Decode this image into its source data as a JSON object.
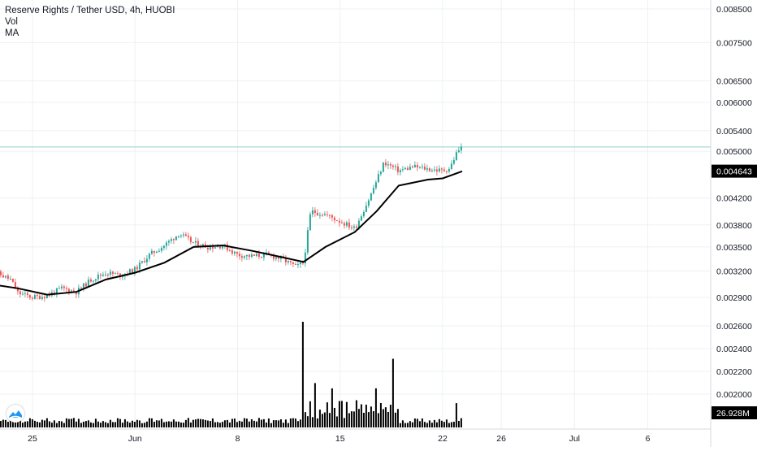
{
  "legend": {
    "title": "Reserve Rights / Tether USD, 4h, HUOBI",
    "vol": "Vol",
    "ma": "MA"
  },
  "price_axis": {
    "ticks": [
      "0.008500",
      "0.007500",
      "0.006500",
      "0.006000",
      "0.005400",
      "0.005000",
      "0.004200",
      "0.003800",
      "0.003500",
      "0.003200",
      "0.002900",
      "0.002600",
      "0.002400",
      "0.002200",
      "0.002000"
    ],
    "current_price_label": "0.004643",
    "last_price_line": "0.005080",
    "volume_label": "26.928M"
  },
  "time_axis": {
    "ticks": [
      "25",
      "Jun",
      "8",
      "15",
      "22",
      "26",
      "Jul",
      "6"
    ]
  },
  "colors": {
    "up": "#26a69a",
    "down": "#ef5350",
    "ma": "#000000",
    "volume": "#000000",
    "grid": "#eef0f3",
    "axis_text": "#131722",
    "price_line": "#8fd0c8",
    "logo": "#2196f3"
  },
  "chart_data": {
    "type": "candlestick",
    "title": "Reserve Rights / Tether USD, 4h, HUOBI",
    "interval": "4h",
    "exchange": "HUOBI",
    "price_axis_scale": "log",
    "visible_price_range": [
      0.0028,
      0.0088
    ],
    "x_range": [
      "2020-05-22",
      "2020-07-09"
    ],
    "price_points": [
      {
        "date": "2020-05-22",
        "price": 0.003
      },
      {
        "date": "2020-05-22T12:00",
        "price": 0.00318
      },
      {
        "date": "2020-05-23T12:00",
        "price": 0.0031
      },
      {
        "date": "2020-05-24",
        "price": 0.00295
      },
      {
        "date": "2020-05-25",
        "price": 0.0029
      },
      {
        "date": "2020-05-26",
        "price": 0.00292
      },
      {
        "date": "2020-05-27",
        "price": 0.003
      },
      {
        "date": "2020-05-28",
        "price": 0.00296
      },
      {
        "date": "2020-05-29",
        "price": 0.0031
      },
      {
        "date": "2020-05-30",
        "price": 0.00318
      },
      {
        "date": "2020-05-31",
        "price": 0.00315
      },
      {
        "date": "2020-06-01",
        "price": 0.00322
      },
      {
        "date": "2020-06-02",
        "price": 0.0034
      },
      {
        "date": "2020-06-03",
        "price": 0.00352
      },
      {
        "date": "2020-06-04",
        "price": 0.00368
      },
      {
        "date": "2020-06-05",
        "price": 0.00355
      },
      {
        "date": "2020-06-06",
        "price": 0.0035
      },
      {
        "date": "2020-06-07",
        "price": 0.00352
      },
      {
        "date": "2020-06-08",
        "price": 0.0034
      },
      {
        "date": "2020-06-09",
        "price": 0.00338
      },
      {
        "date": "2020-06-10",
        "price": 0.0034
      },
      {
        "date": "2020-06-11",
        "price": 0.00335
      },
      {
        "date": "2020-06-12",
        "price": 0.00325
      },
      {
        "date": "2020-06-12T12:00",
        "price": 0.0033
      },
      {
        "date": "2020-06-13",
        "price": 0.004
      },
      {
        "date": "2020-06-14",
        "price": 0.00395
      },
      {
        "date": "2020-06-15",
        "price": 0.00385
      },
      {
        "date": "2020-06-16",
        "price": 0.00375
      },
      {
        "date": "2020-06-17",
        "price": 0.0042
      },
      {
        "date": "2020-06-18",
        "price": 0.0048
      },
      {
        "date": "2020-06-19",
        "price": 0.00465
      },
      {
        "date": "2020-06-20",
        "price": 0.00472
      },
      {
        "date": "2020-06-21",
        "price": 0.00468
      },
      {
        "date": "2020-06-22",
        "price": 0.00465
      },
      {
        "date": "2020-06-22T12:00",
        "price": 0.0047
      },
      {
        "date": "2020-06-23",
        "price": 0.005
      },
      {
        "date": "2020-06-23T08:00",
        "price": 0.00508
      }
    ],
    "ma_series": [
      {
        "date": "2020-05-22",
        "price": 0.00305
      },
      {
        "date": "2020-05-24",
        "price": 0.003
      },
      {
        "date": "2020-05-26",
        "price": 0.00293
      },
      {
        "date": "2020-05-28",
        "price": 0.00296
      },
      {
        "date": "2020-05-30",
        "price": 0.0031
      },
      {
        "date": "2020-06-01",
        "price": 0.00318
      },
      {
        "date": "2020-06-03",
        "price": 0.0033
      },
      {
        "date": "2020-06-05",
        "price": 0.0035
      },
      {
        "date": "2020-06-07",
        "price": 0.00352
      },
      {
        "date": "2020-06-09",
        "price": 0.00345
      },
      {
        "date": "2020-06-11",
        "price": 0.00337
      },
      {
        "date": "2020-06-12T12:00",
        "price": 0.00331
      },
      {
        "date": "2020-06-14",
        "price": 0.0035
      },
      {
        "date": "2020-06-16",
        "price": 0.0037
      },
      {
        "date": "2020-06-17T12:00",
        "price": 0.004
      },
      {
        "date": "2020-06-19",
        "price": 0.0044
      },
      {
        "date": "2020-06-21",
        "price": 0.0045
      },
      {
        "date": "2020-06-22",
        "price": 0.00452
      },
      {
        "date": "2020-06-23T08:00",
        "price": 0.00464
      }
    ],
    "volume_spikes": [
      {
        "date": "2020-06-12T12:00",
        "volume_relative": 1.0
      },
      {
        "date": "2020-06-13T08:00",
        "volume_relative": 0.42
      },
      {
        "date": "2020-06-14T12:00",
        "volume_relative": 0.37
      },
      {
        "date": "2020-06-17T12:00",
        "volume_relative": 0.37
      },
      {
        "date": "2020-06-18T16:00",
        "volume_relative": 0.65
      },
      {
        "date": "2020-06-23",
        "volume_relative": 0.23
      }
    ]
  }
}
